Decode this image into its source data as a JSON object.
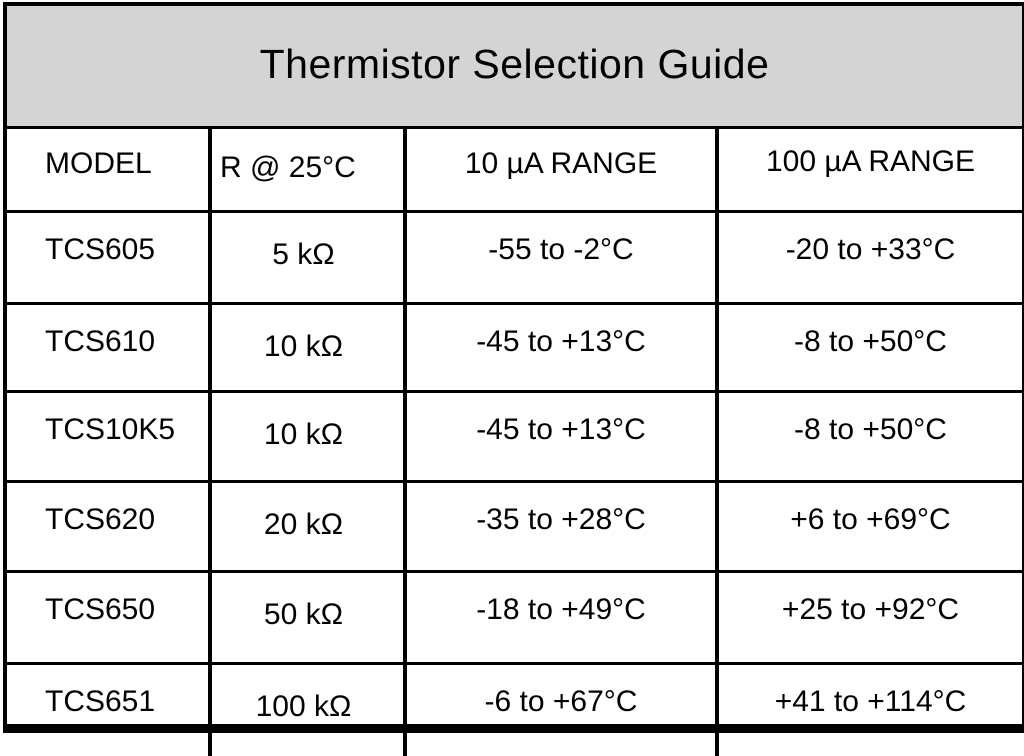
{
  "title": "Thermistor Selection Guide",
  "columns": [
    "MODEL",
    "R @ 25°C",
    "10 µA RANGE",
    "100 µA RANGE"
  ],
  "rows": [
    [
      "TCS605",
      "5 kΩ",
      "-55 to -2°C",
      "-20 to +33°C"
    ],
    [
      "TCS610",
      "10 kΩ",
      "-45 to +13°C",
      "-8 to +50°C"
    ],
    [
      "TCS10K5",
      "10 kΩ",
      "-45 to +13°C",
      "-8 to +50°C"
    ],
    [
      "TCS620",
      "20 kΩ",
      "-35 to +28°C",
      "+6 to +69°C"
    ],
    [
      "TCS650",
      "50 kΩ",
      "-18 to +49°C",
      "+25 to +92°C"
    ],
    [
      "TCS651",
      "100 kΩ",
      "-6 to +67°C",
      "+41 to +114°C"
    ]
  ],
  "colors": {
    "title_background": "#d4d4d4",
    "border": "#000000"
  }
}
